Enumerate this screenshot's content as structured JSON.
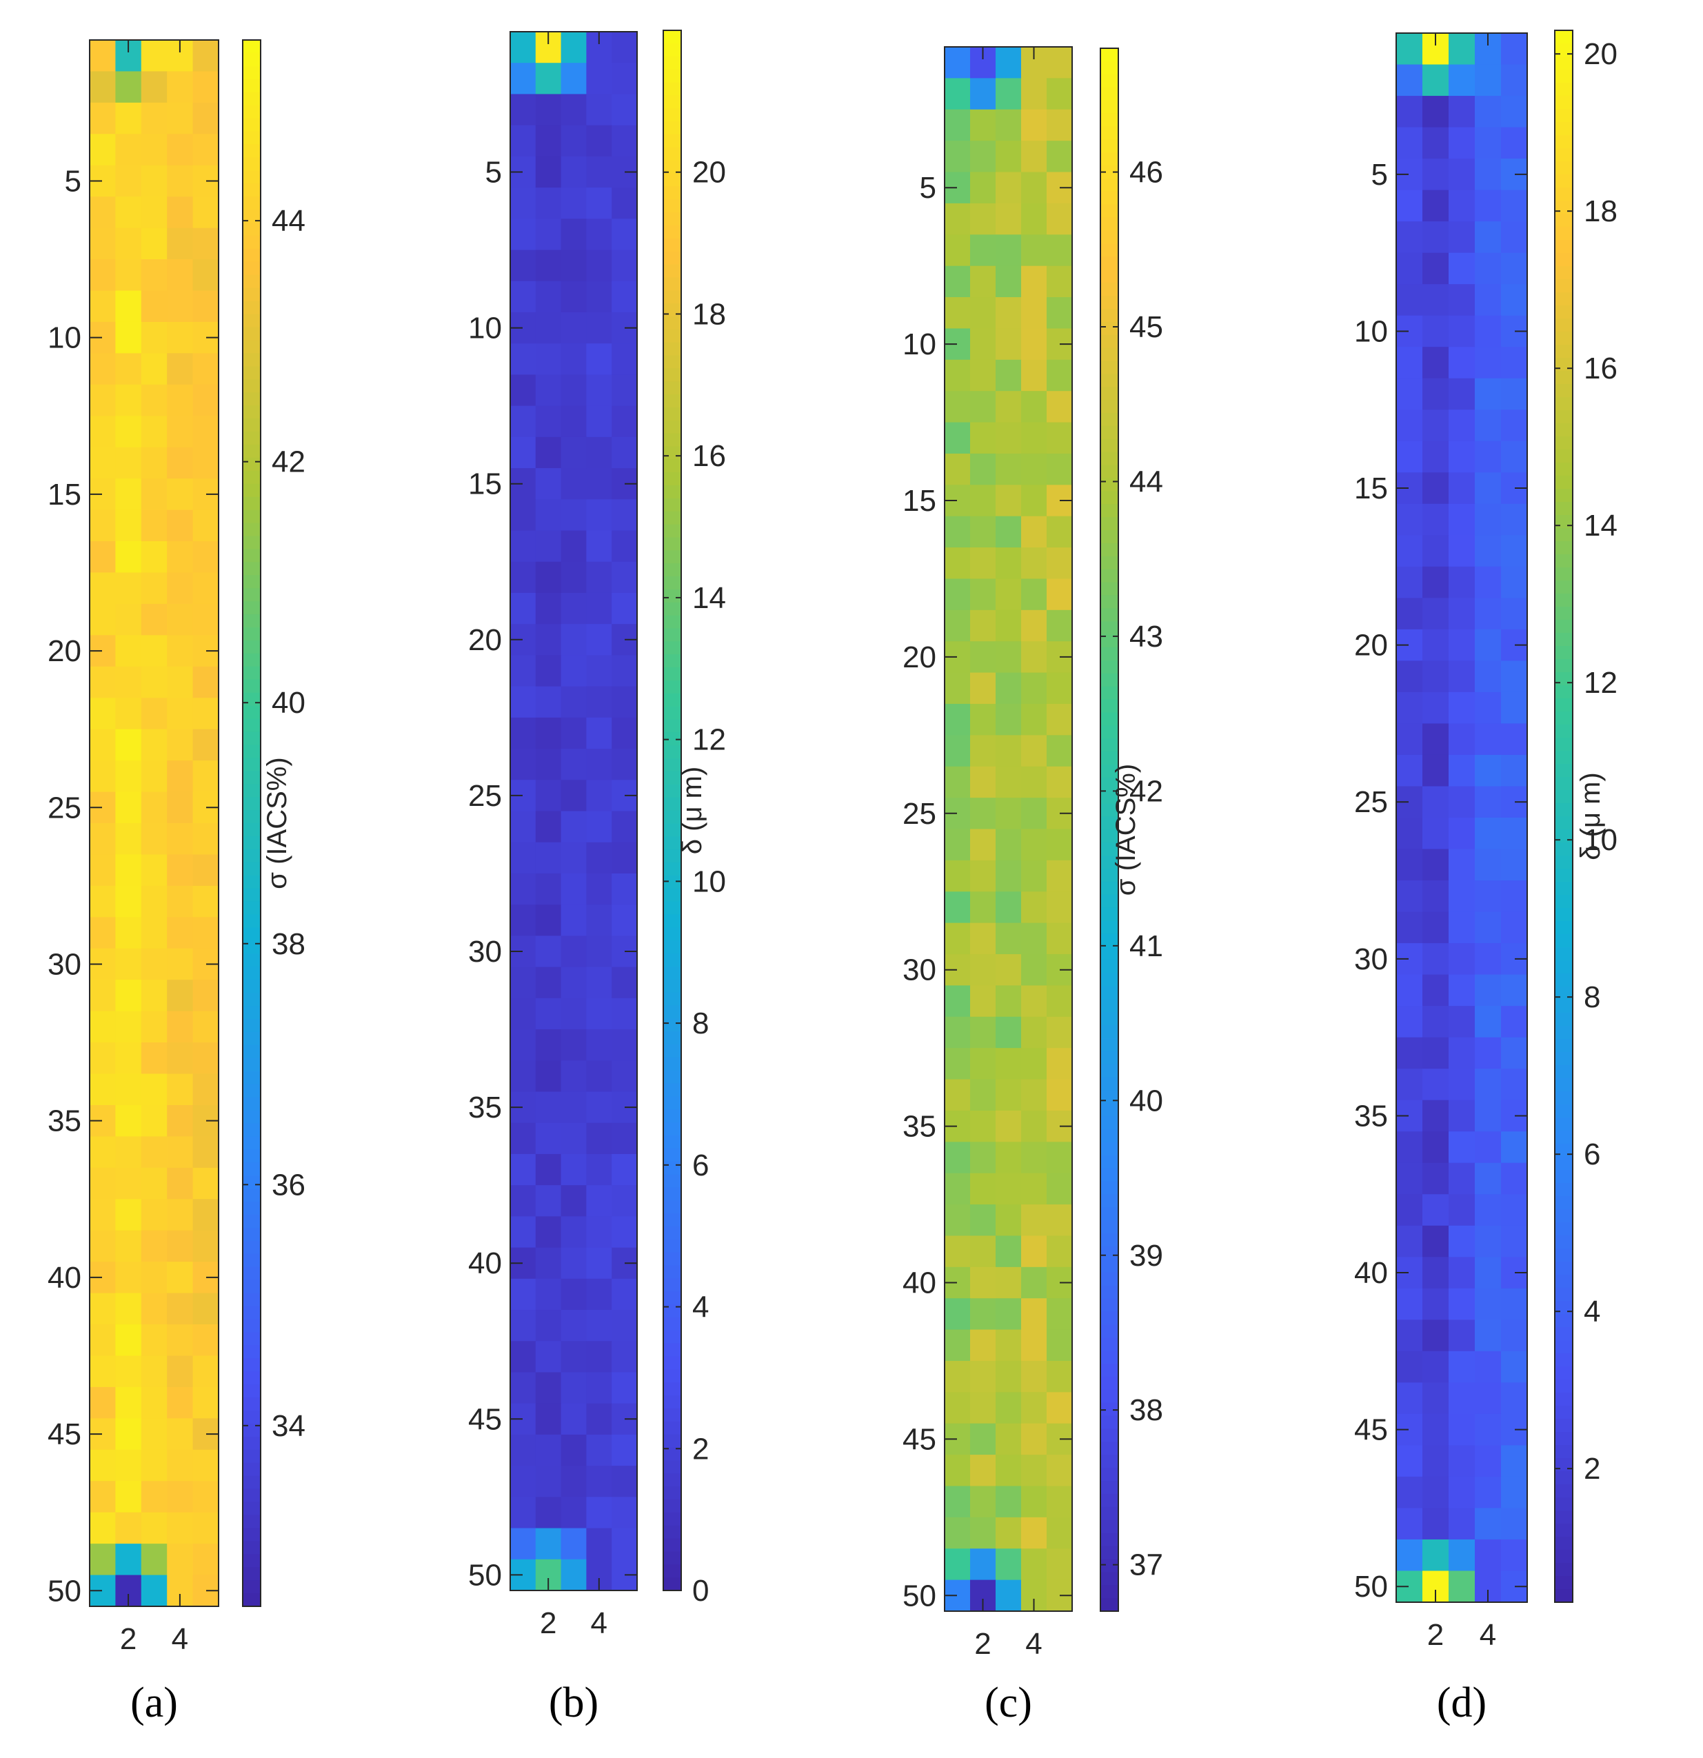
{
  "chart_data": [
    {
      "type": "heatmap",
      "panel_label": "(a)",
      "colorbar_label": "σ (IACS%)",
      "x_ticks": [
        "2",
        "4"
      ],
      "y_ticks": [
        "5",
        "10",
        "15",
        "20",
        "25",
        "30",
        "35",
        "40",
        "45",
        "50"
      ],
      "colorbar_ticks": [
        "34",
        "36",
        "38",
        "40",
        "42",
        "44"
      ],
      "clim": [
        32.5,
        45.5
      ],
      "rows_top": [
        [
          43.8,
          39.0,
          44.6,
          44.6
        ],
        [
          43.0,
          41.5,
          43.2,
          44.0
        ]
      ],
      "rows_bottom": [
        [
          41.5,
          38.2,
          41.5,
          44.0
        ],
        [
          38.2,
          32.8,
          38.2,
          44.0
        ]
      ],
      "middle_profile": [
        44.2,
        44.6,
        44.2,
        43.8
      ],
      "middle_variation": 0.5
    },
    {
      "type": "heatmap",
      "panel_label": "(b)",
      "colorbar_label": "δ (μ m)",
      "x_ticks": [
        "2",
        "4"
      ],
      "y_ticks": [
        "5",
        "10",
        "15",
        "20",
        "25",
        "30",
        "35",
        "40",
        "45",
        "50"
      ],
      "colorbar_ticks": [
        "0",
        "2",
        "4",
        "6",
        "8",
        "10",
        "12",
        "14",
        "16",
        "18",
        "20"
      ],
      "clim": [
        0,
        22
      ],
      "rows_top": [
        [
          10.0,
          21.0,
          10.0,
          2.0
        ],
        [
          6.5,
          11.0,
          6.5,
          2.0
        ]
      ],
      "rows_bottom": [
        [
          5.0,
          7.5,
          5.0,
          1.5
        ],
        [
          9.0,
          13.0,
          8.0,
          1.5
        ]
      ],
      "middle_profile": [
        1.6,
        1.4,
        1.6,
        1.8
      ],
      "middle_variation": 0.6
    },
    {
      "type": "heatmap",
      "panel_label": "(c)",
      "colorbar_label": "σ (IACS%)",
      "x_ticks": [
        "2",
        "4"
      ],
      "y_ticks": [
        "5",
        "10",
        "15",
        "20",
        "25",
        "30",
        "35",
        "40",
        "45",
        "50"
      ],
      "colorbar_ticks": [
        "37",
        "38",
        "39",
        "40",
        "41",
        "42",
        "43",
        "44",
        "45",
        "46"
      ],
      "clim": [
        36.7,
        46.8
      ],
      "rows_top": [
        [
          39.5,
          38.0,
          40.5,
          44.5
        ],
        [
          42.5,
          40.0,
          42.8,
          44.5
        ]
      ],
      "rows_bottom": [
        [
          42.5,
          40.0,
          42.8,
          44.0
        ],
        [
          39.5,
          37.0,
          40.5,
          44.0
        ]
      ],
      "middle_profile": [
        43.6,
        44.0,
        43.8,
        44.2
      ],
      "middle_variation": 0.6
    },
    {
      "type": "heatmap",
      "panel_label": "(d)",
      "colorbar_label": "δ (μ m)",
      "x_ticks": [
        "2",
        "4"
      ],
      "y_ticks": [
        "5",
        "10",
        "15",
        "20",
        "25",
        "30",
        "35",
        "40",
        "45",
        "50"
      ],
      "colorbar_ticks": [
        "2",
        "4",
        "6",
        "8",
        "10",
        "12",
        "14",
        "16",
        "18",
        "20"
      ],
      "clim": [
        0.3,
        20.3
      ],
      "rows_top": [
        [
          10.5,
          20.0,
          10.5,
          5.5
        ],
        [
          5.0,
          10.5,
          6.0,
          5.5
        ]
      ],
      "rows_bottom": [
        [
          6.0,
          10.0,
          6.5,
          3.0
        ],
        [
          11.5,
          20.0,
          12.5,
          3.0
        ]
      ],
      "middle_profile": [
        2.4,
        1.8,
        2.8,
        4.0
      ],
      "middle_variation": 0.8
    }
  ]
}
